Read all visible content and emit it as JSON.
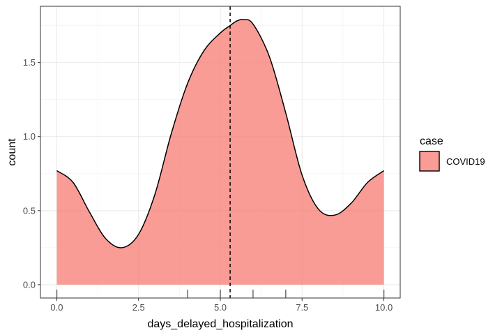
{
  "chart_data": {
    "type": "area",
    "title": "",
    "xlabel": "days_delayed_hospitalization",
    "ylabel": "count",
    "xlim": [
      -0.5,
      10.5
    ],
    "ylim": [
      -0.09,
      1.88
    ],
    "x_ticks": [
      0.0,
      2.5,
      5.0,
      7.5,
      10.0
    ],
    "x_tick_labels": [
      "0.0",
      "2.5",
      "5.0",
      "7.5",
      "10.0"
    ],
    "y_ticks": [
      0.0,
      0.5,
      1.0,
      1.5
    ],
    "y_tick_labels": [
      "0.0",
      "0.5",
      "1.0",
      "1.5"
    ],
    "grid": true,
    "vline": {
      "x": 5.3,
      "style": "dashed"
    },
    "rug": [
      0,
      4,
      5,
      6,
      7,
      10
    ],
    "series": [
      {
        "name": "COVID19",
        "fill": "#F8766D",
        "x": [
          0,
          0.5,
          1,
          1.5,
          2,
          2.5,
          3,
          3.5,
          4,
          4.5,
          5,
          5.3,
          5.5,
          5.7,
          6,
          6.5,
          7,
          7.5,
          8,
          8.5,
          9,
          9.5,
          10
        ],
        "values": [
          0.77,
          0.69,
          0.49,
          0.31,
          0.25,
          0.34,
          0.61,
          1.02,
          1.36,
          1.58,
          1.7,
          1.75,
          1.78,
          1.79,
          1.76,
          1.54,
          1.16,
          0.74,
          0.51,
          0.47,
          0.55,
          0.69,
          0.77
        ]
      }
    ],
    "legend": {
      "title": "case",
      "position": "right",
      "entries": [
        "COVID19"
      ]
    }
  }
}
